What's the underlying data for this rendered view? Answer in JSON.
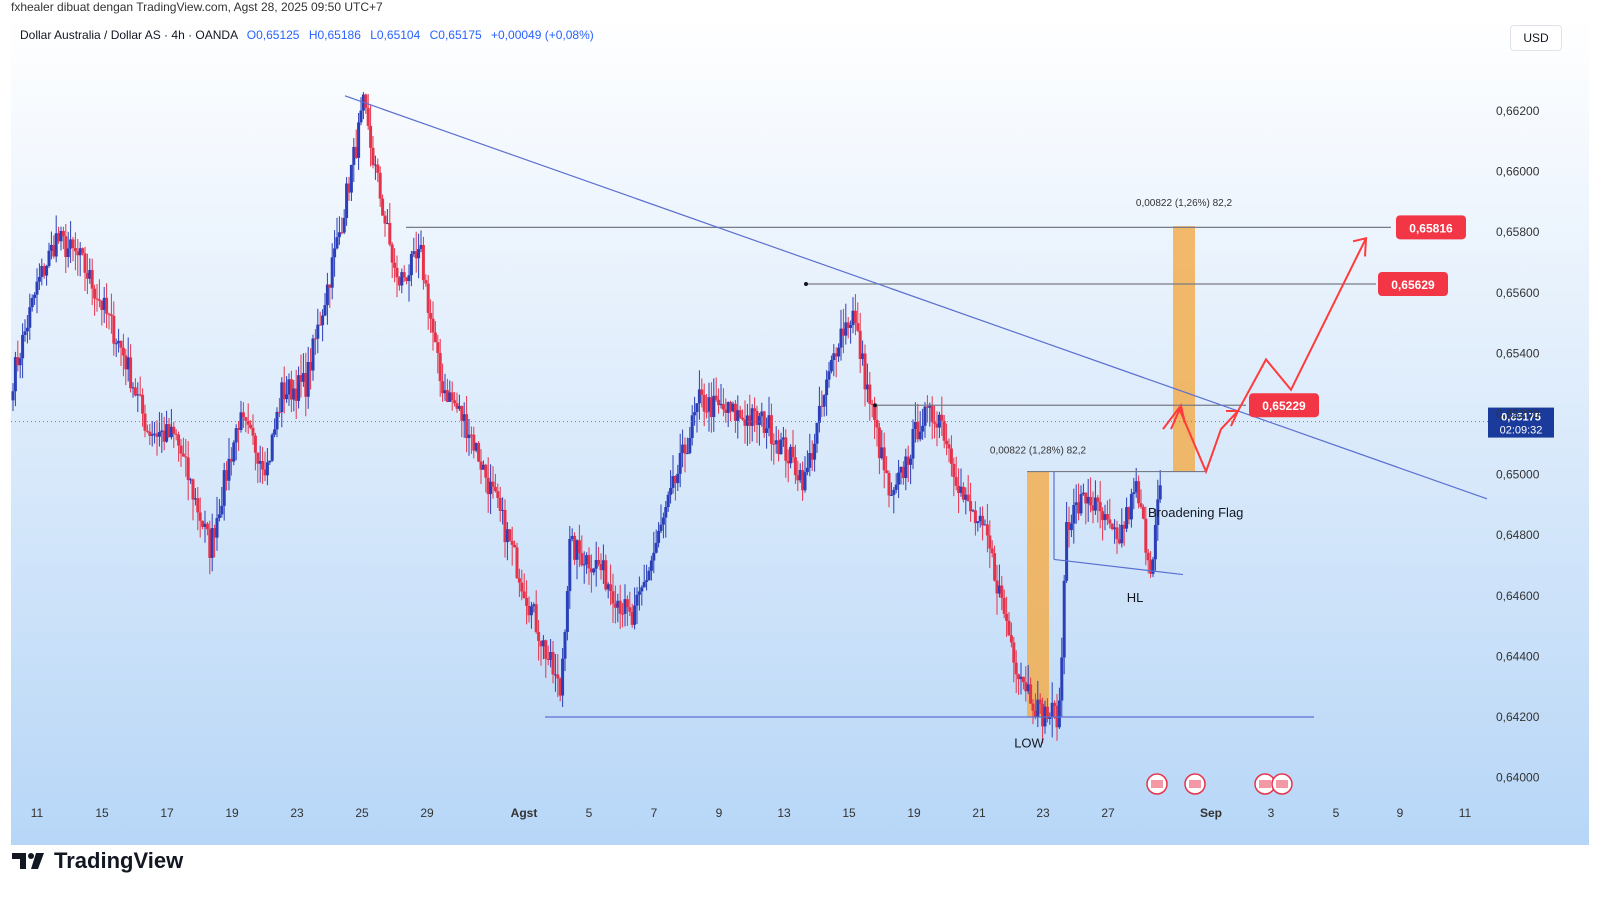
{
  "caption": "fxhealer dibuat dengan TradingView.com, Agst 28, 2025 09:50 UTC+7",
  "legend": {
    "symbol": "Dollar Australia / Dollar AS · 4h · OANDA",
    "open": "O0,65125",
    "high": "H0,65186",
    "low": "L0,65104",
    "close": "C0,65175",
    "change": "+0,00049 (+0,08%)"
  },
  "currency_button": "USD",
  "brand": "TradingView",
  "colors": {
    "up": "#2a3fb8",
    "down": "#e5334b",
    "trend": "#5b6fd1",
    "target_box": "#f2ae4f",
    "level_line": "#787b86",
    "projection": "#ff3b3b",
    "label_bg": "#f23645"
  },
  "chart_data": {
    "type": "candlestick",
    "timeframe": "4h",
    "ylim": [
      0.6395,
      0.6635
    ],
    "y_ticks": [
      "0,66200",
      "0,66000",
      "0,65800",
      "0,65600",
      "0,65400",
      "0,65200",
      "0,65000",
      "0,64800",
      "0,64600",
      "0,64400",
      "0,64200",
      "0,64000"
    ],
    "y_tick_values": [
      0.662,
      0.66,
      0.658,
      0.656,
      0.654,
      0.652,
      0.65,
      0.648,
      0.646,
      0.644,
      0.642,
      0.64
    ],
    "x_ticks": [
      "11",
      "15",
      "17",
      "19",
      "23",
      "25",
      "29",
      "Agst",
      "5",
      "7",
      "9",
      "13",
      "15",
      "19",
      "21",
      "23",
      "27",
      "Sep",
      "3",
      "5",
      "9",
      "11"
    ],
    "current_price": {
      "value": 0.65175,
      "label": "0,65175",
      "countdown": "02:09:32"
    },
    "key_levels": [
      {
        "value": 0.65816,
        "label": "0,65816"
      },
      {
        "value": 0.65629,
        "label": "0,65629"
      },
      {
        "value": 0.65229,
        "label": "0,65229"
      }
    ],
    "annotations": {
      "measure_upper": "0,00822 (1,26%) 82,2",
      "measure_lower": "0,00822 (1,28%) 82,2",
      "pattern": "Broadening Flag",
      "hl": "HL",
      "low": "LOW"
    },
    "anchors": [
      {
        "x": 0,
        "v": 0.6532
      },
      {
        "x": 10,
        "v": 0.6562
      },
      {
        "x": 18,
        "v": 0.6578
      },
      {
        "x": 28,
        "v": 0.6571
      },
      {
        "x": 36,
        "v": 0.6558
      },
      {
        "x": 46,
        "v": 0.654
      },
      {
        "x": 56,
        "v": 0.6515
      },
      {
        "x": 68,
        "v": 0.6512
      },
      {
        "x": 82,
        "v": 0.6476
      },
      {
        "x": 94,
        "v": 0.6518
      },
      {
        "x": 106,
        "v": 0.6503
      },
      {
        "x": 112,
        "v": 0.6527
      },
      {
        "x": 122,
        "v": 0.653
      },
      {
        "x": 136,
        "v": 0.658
      },
      {
        "x": 146,
        "v": 0.6621
      },
      {
        "x": 160,
        "v": 0.6563
      },
      {
        "x": 170,
        "v": 0.6572
      },
      {
        "x": 178,
        "v": 0.6531
      },
      {
        "x": 190,
        "v": 0.6515
      },
      {
        "x": 205,
        "v": 0.6482
      },
      {
        "x": 220,
        "v": 0.6446
      },
      {
        "x": 228,
        "v": 0.6428
      },
      {
        "x": 232,
        "v": 0.6476
      },
      {
        "x": 244,
        "v": 0.647
      },
      {
        "x": 258,
        "v": 0.6451
      },
      {
        "x": 270,
        "v": 0.6482
      },
      {
        "x": 286,
        "v": 0.6524
      },
      {
        "x": 300,
        "v": 0.652
      },
      {
        "x": 314,
        "v": 0.6517
      },
      {
        "x": 330,
        "v": 0.6498
      },
      {
        "x": 344,
        "v": 0.6546
      },
      {
        "x": 350,
        "v": 0.6553
      },
      {
        "x": 356,
        "v": 0.6528
      },
      {
        "x": 366,
        "v": 0.649
      },
      {
        "x": 378,
        "v": 0.6518
      },
      {
        "x": 386,
        "v": 0.652
      },
      {
        "x": 396,
        "v": 0.6492
      },
      {
        "x": 406,
        "v": 0.6478
      },
      {
        "x": 418,
        "v": 0.6438
      },
      {
        "x": 428,
        "v": 0.6421
      },
      {
        "x": 436,
        "v": 0.6421
      },
      {
        "x": 439,
        "v": 0.6485
      },
      {
        "x": 448,
        "v": 0.6493
      },
      {
        "x": 460,
        "v": 0.6477
      },
      {
        "x": 468,
        "v": 0.6495
      },
      {
        "x": 474,
        "v": 0.647
      },
      {
        "x": 480,
        "v": 0.6508
      },
      {
        "x": 488,
        "v": 0.65175
      }
    ],
    "x_range": [
      0,
      650
    ]
  }
}
